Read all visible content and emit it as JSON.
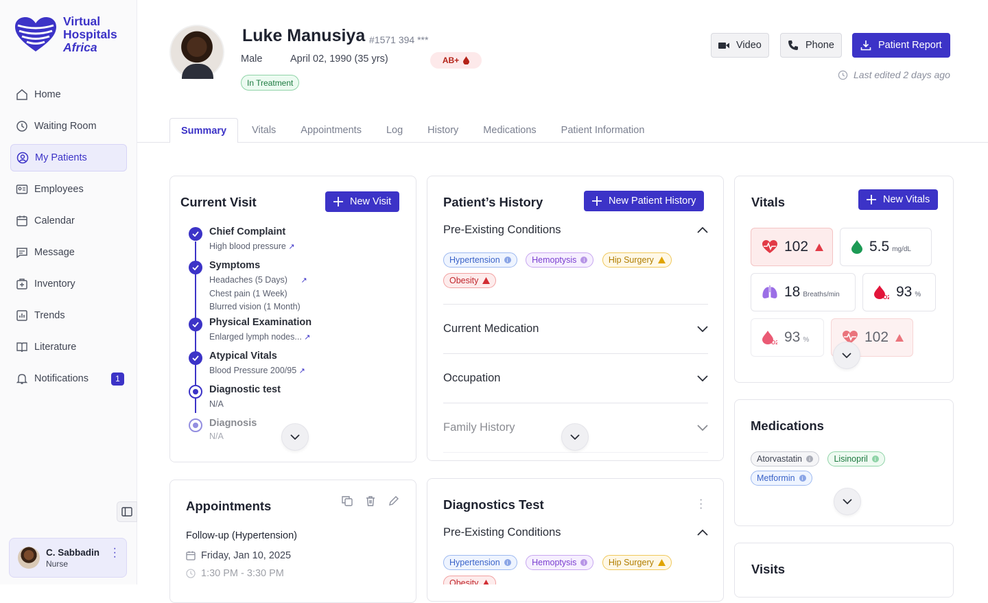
{
  "brand": {
    "line1": "Virtual",
    "line2": "Hospitals",
    "line3": "Africa",
    "color": "#3c33c7"
  },
  "nav": [
    {
      "label": "Home",
      "icon": "home-icon"
    },
    {
      "label": "Waiting Room",
      "icon": "clock-icon"
    },
    {
      "label": "My Patients",
      "icon": "user-circle-icon",
      "active": true
    },
    {
      "label": "Employees",
      "icon": "id-card-icon"
    },
    {
      "label": "Calendar",
      "icon": "calendar-icon"
    },
    {
      "label": "Message",
      "icon": "message-icon"
    },
    {
      "label": "Inventory",
      "icon": "inventory-icon"
    },
    {
      "label": "Trends",
      "icon": "chart-icon"
    },
    {
      "label": "Literature",
      "icon": "book-icon"
    },
    {
      "label": "Notifications",
      "icon": "bell-icon",
      "badge": "1"
    }
  ],
  "user": {
    "name": "C. Sabbadin",
    "role": "Nurse"
  },
  "patient": {
    "name": "Luke Manusiya",
    "id": "#1571 394 ***",
    "gender": "Male",
    "dob": "April 02, 1990 (35 yrs)",
    "blood": "AB+",
    "status": "In Treatment"
  },
  "actions": {
    "video": "Video",
    "phone": "Phone",
    "report": "Patient Report",
    "last_edited": "Last edited 2 days ago"
  },
  "tabs": [
    "Summary",
    "Vitals",
    "Appointments",
    "Log",
    "History",
    "Medications",
    "Patient Information"
  ],
  "current_visit": {
    "title": "Current Visit",
    "new_label": "New Visit",
    "items": [
      {
        "title": "Chief Complaint",
        "lines": [
          "High blood pressure"
        ],
        "done": true
      },
      {
        "title": "Symptoms",
        "lines": [
          "Headaches (5 Days)",
          "Chest pain (1 Week)",
          "Blurred vision (1 Month)"
        ],
        "done": true
      },
      {
        "title": "Physical Examination",
        "lines": [
          "Enlarged lymph nodes..."
        ],
        "done": true
      },
      {
        "title": "Atypical Vitals",
        "lines": [
          "Blood Pressure 200/95"
        ],
        "done": true
      },
      {
        "title": "Diagnostic test",
        "lines": [
          "N/A"
        ],
        "done": false
      },
      {
        "title": "Diagnosis",
        "lines": [
          "N/A"
        ],
        "done": false
      }
    ]
  },
  "history": {
    "title": "Patient’s History",
    "new_label": "New Patient History",
    "sections": [
      "Pre-Existing Conditions",
      "Current Medication",
      "Occupation",
      "Family History"
    ],
    "conditions": [
      "Hypertension",
      "Hemoptysis",
      "Hip Surgery",
      "Obesity"
    ]
  },
  "vitals": {
    "title": "Vitals",
    "new_label": "New Vitals",
    "items": [
      {
        "value": "102",
        "unit": "",
        "icon": "heart-rate-icon"
      },
      {
        "value": "5.5",
        "unit": "mg/dL",
        "icon": "drop-icon"
      },
      {
        "value": "18",
        "unit": "Breaths/min",
        "icon": "lungs-icon"
      },
      {
        "value": "93",
        "unit": "%",
        "icon": "oxygen-icon"
      },
      {
        "value": "93",
        "unit": "%",
        "icon": "oxygen-icon"
      },
      {
        "value": "102",
        "unit": "",
        "icon": "heart-rate-icon"
      }
    ]
  },
  "medications": {
    "title": "Medications",
    "items": [
      "Atorvastatin",
      "Lisinopril",
      "Metformin"
    ]
  },
  "appointments": {
    "title": "Appointments",
    "name": "Follow-up (Hypertension)",
    "date": "Friday, Jan 10, 2025",
    "time": "1:30 PM - 3:30 PM"
  },
  "diagnostics": {
    "title": "Diagnostics Test",
    "section": "Pre-Existing Conditions",
    "conditions": [
      "Hypertension",
      "Hemoptysis",
      "Hip Surgery",
      "Obesity"
    ]
  },
  "visits": {
    "title": "Visits"
  }
}
